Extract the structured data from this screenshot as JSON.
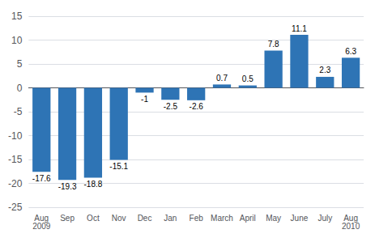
{
  "chart_data": {
    "type": "bar",
    "categories": [
      "Aug\n2009",
      "Sep",
      "Oct",
      "Nov",
      "Dec",
      "Jan",
      "Feb",
      "March",
      "April",
      "May",
      "June",
      "July",
      "Aug\n2010"
    ],
    "values": [
      -17.6,
      -19.3,
      -18.8,
      -15.1,
      -1,
      -2.5,
      -2.6,
      0.7,
      0.5,
      7.8,
      11.1,
      2.3,
      6.3
    ],
    "color": "#2E74B5",
    "ylim": [
      -25,
      15
    ],
    "yticks": [
      -25,
      -20,
      -15,
      -10,
      -5,
      0,
      5,
      10,
      15
    ],
    "grid": true,
    "data_labels": true
  }
}
